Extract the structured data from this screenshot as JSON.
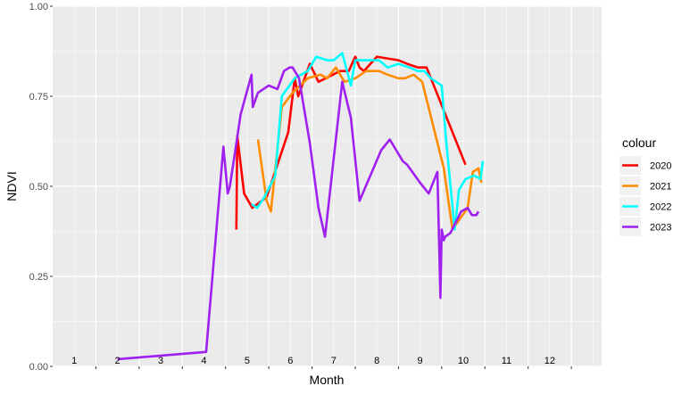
{
  "chart_data": {
    "type": "line",
    "xlabel": "Month",
    "ylabel": "NDVI",
    "xlim": [
      0,
      12.7
    ],
    "ylim": [
      0,
      1
    ],
    "y_ticks": [
      "0.00",
      "0.25",
      "0.50",
      "0.75",
      "1.00"
    ],
    "y_tick_values": [
      0,
      0.25,
      0.5,
      0.75,
      1.0
    ],
    "month_labels": [
      "1",
      "2",
      "3",
      "4",
      "5",
      "6",
      "7",
      "8",
      "9",
      "10",
      "11",
      "12"
    ],
    "month_label_positions": [
      0.5,
      1.5,
      2.5,
      3.5,
      4.5,
      5.5,
      6.5,
      7.5,
      8.5,
      9.5,
      10.5,
      11.5
    ],
    "grid": true,
    "legend": {
      "title": "colour",
      "position": "right"
    },
    "series": [
      {
        "name": "2020",
        "color": "#ff0000",
        "x": [
          4.25,
          4.27,
          4.43,
          4.62,
          4.95,
          5.45,
          5.6,
          5.68,
          5.95,
          6.15,
          6.65,
          6.85,
          7.0,
          7.1,
          7.2,
          7.5,
          8.0,
          8.2,
          8.45,
          8.65,
          9.55
        ],
        "y": [
          0.38,
          0.64,
          0.48,
          0.44,
          0.47,
          0.65,
          0.8,
          0.75,
          0.84,
          0.79,
          0.82,
          0.82,
          0.86,
          0.83,
          0.82,
          0.86,
          0.85,
          0.84,
          0.83,
          0.83,
          0.56
        ]
      },
      {
        "name": "2021",
        "color": "#ff8c00",
        "x": [
          4.75,
          4.95,
          5.05,
          5.3,
          5.55,
          5.9,
          6.2,
          6.35,
          6.55,
          6.75,
          7.0,
          7.25,
          7.55,
          7.75,
          8.0,
          8.15,
          8.35,
          8.55,
          9.05,
          9.25,
          9.6,
          9.72,
          9.85,
          9.92
        ],
        "y": [
          0.63,
          0.46,
          0.43,
          0.72,
          0.76,
          0.8,
          0.81,
          0.8,
          0.83,
          0.79,
          0.8,
          0.82,
          0.82,
          0.81,
          0.8,
          0.8,
          0.81,
          0.79,
          0.55,
          0.38,
          0.44,
          0.54,
          0.55,
          0.51
        ]
      },
      {
        "name": "2022",
        "color": "#00ffff",
        "x": [
          4.6,
          4.73,
          4.9,
          5.15,
          5.3,
          5.6,
          5.9,
          6.1,
          6.35,
          6.5,
          6.7,
          6.9,
          7.0,
          7.2,
          7.55,
          7.75,
          8.0,
          8.25,
          8.45,
          8.6,
          8.75,
          9.0,
          9.1,
          9.3,
          9.4,
          9.55,
          9.75,
          9.9,
          9.95
        ],
        "y": [
          0.45,
          0.44,
          0.47,
          0.53,
          0.75,
          0.8,
          0.82,
          0.86,
          0.85,
          0.85,
          0.87,
          0.78,
          0.85,
          0.85,
          0.85,
          0.83,
          0.84,
          0.83,
          0.82,
          0.82,
          0.8,
          0.78,
          0.63,
          0.38,
          0.49,
          0.52,
          0.53,
          0.52,
          0.57
        ]
      },
      {
        "name": "2023",
        "color": "#a020f0",
        "x": [
          1.5,
          3.55,
          3.95,
          4.05,
          4.1,
          4.2,
          4.35,
          4.6,
          4.63,
          4.75,
          5.0,
          5.2,
          5.35,
          5.48,
          5.55,
          5.7,
          5.95,
          6.15,
          6.3,
          6.7,
          6.9,
          7.1,
          7.6,
          7.8,
          8.1,
          8.2,
          8.5,
          8.7,
          8.9,
          8.97,
          9.0,
          9.05,
          9.08,
          9.2,
          9.45,
          9.6,
          9.7,
          9.8,
          9.85
        ],
        "y": [
          0.02,
          0.04,
          0.61,
          0.48,
          0.5,
          0.58,
          0.7,
          0.81,
          0.72,
          0.76,
          0.78,
          0.77,
          0.82,
          0.83,
          0.83,
          0.8,
          0.62,
          0.44,
          0.36,
          0.79,
          0.69,
          0.46,
          0.6,
          0.63,
          0.57,
          0.56,
          0.51,
          0.48,
          0.54,
          0.19,
          0.38,
          0.35,
          0.36,
          0.37,
          0.43,
          0.44,
          0.42,
          0.42,
          0.43
        ]
      }
    ]
  }
}
